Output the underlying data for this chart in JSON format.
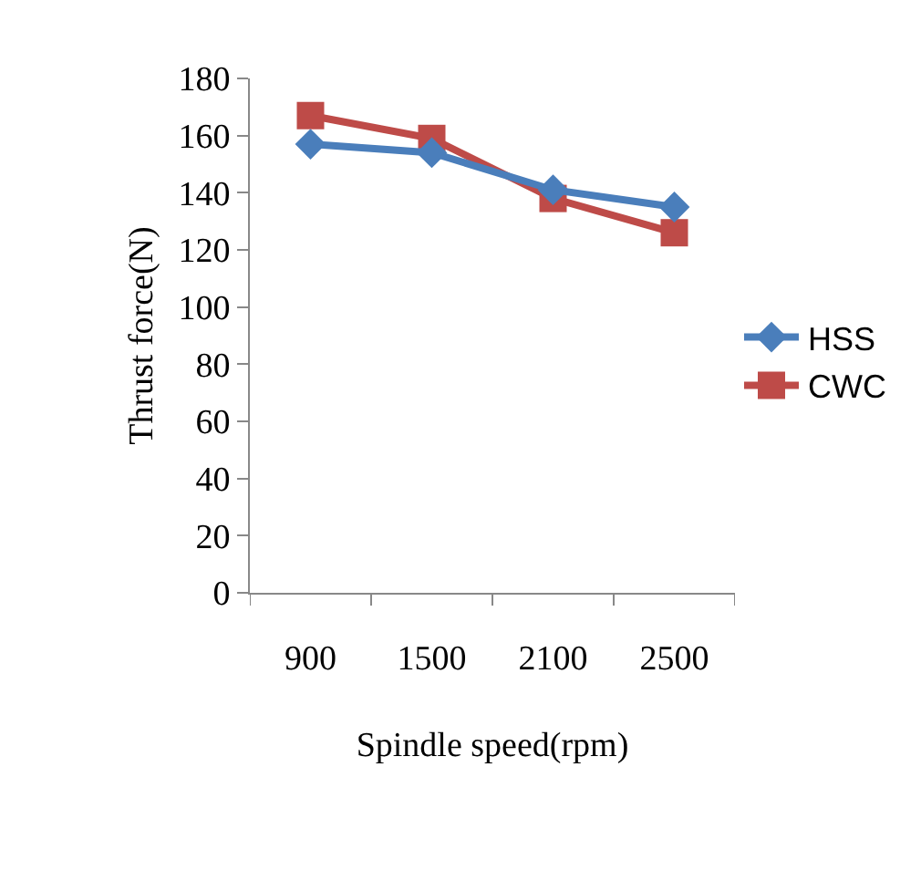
{
  "chart_data": {
    "type": "line",
    "xlabel": "Spindle speed(rpm)",
    "ylabel": "Thrust force(N)",
    "categories": [
      "900",
      "1500",
      "2100",
      "2500"
    ],
    "series": [
      {
        "name": "HSS",
        "color": "#4a7ebb",
        "values": [
          157,
          154,
          141,
          135
        ],
        "marker": "diamond"
      },
      {
        "name": "CWC",
        "color": "#be4b48",
        "values": [
          167,
          159,
          138,
          126
        ],
        "marker": "square"
      }
    ],
    "ylim": [
      0,
      180
    ],
    "yticks": [
      0,
      20,
      40,
      60,
      80,
      100,
      120,
      140,
      160,
      180
    ],
    "grid": false,
    "legend": "right"
  }
}
